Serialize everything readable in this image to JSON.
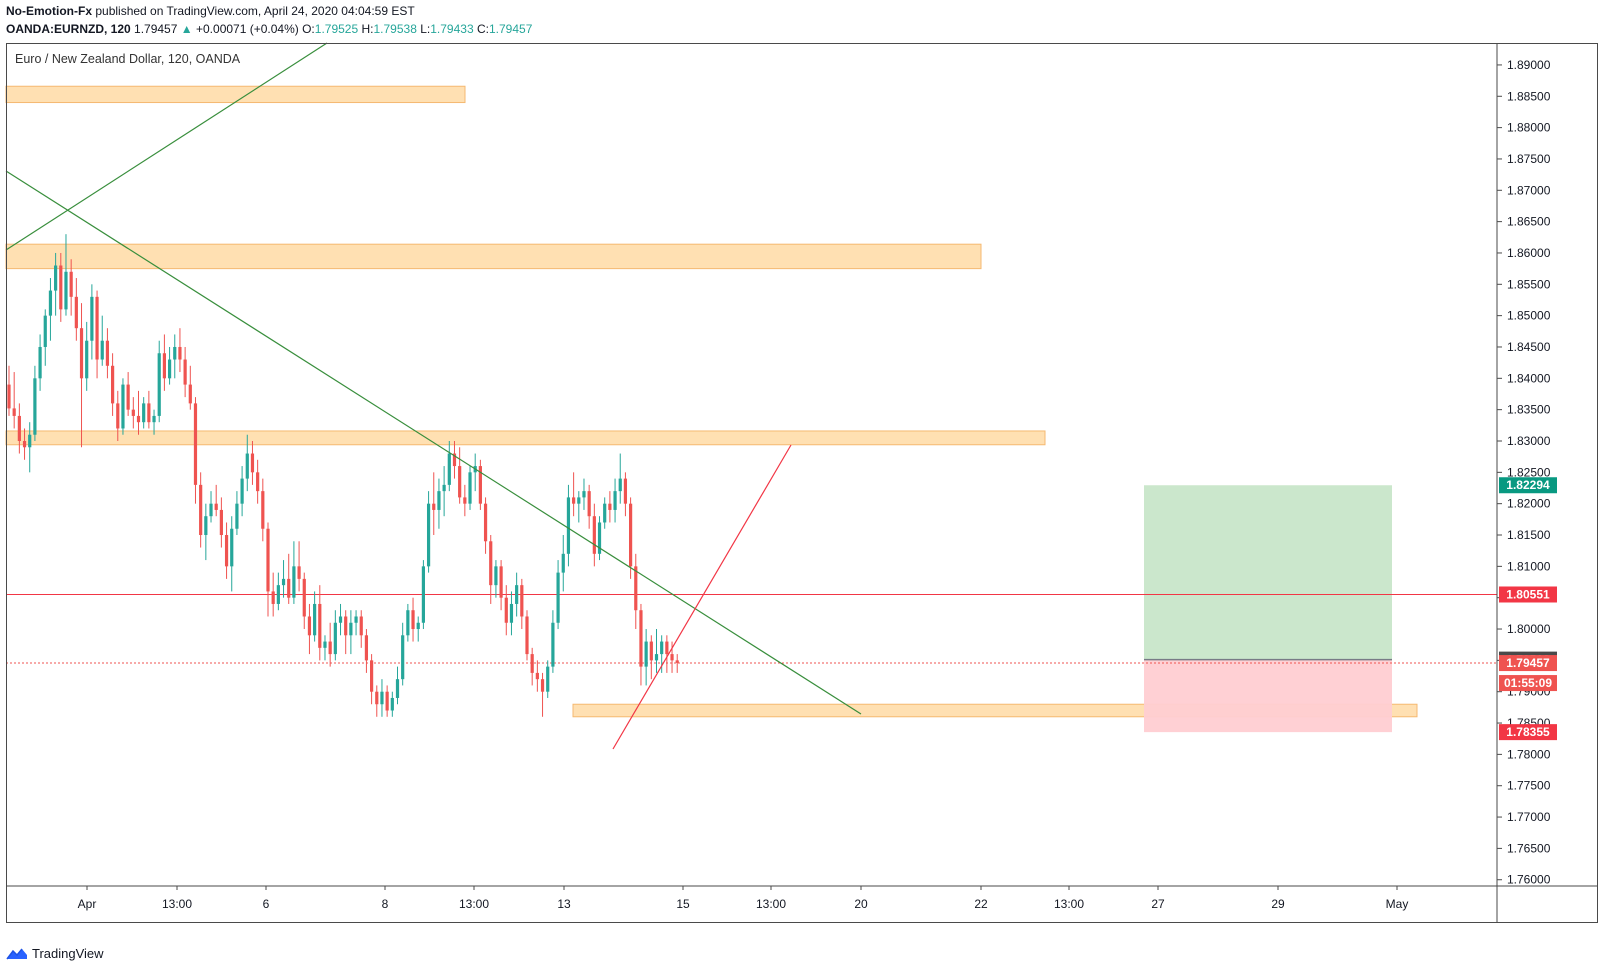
{
  "header": {
    "publisher": "No-Emotion-Fx",
    "published_text": "published on TradingView.com, April 24, 2020 04:04:59 EST",
    "symbol": "OANDA:EURNZD, 120",
    "last": "1.79457",
    "arrow": "▲",
    "change": "+0.00071 (+0.04%)",
    "open_label": "O:",
    "open": "1.79525",
    "high_label": "H:",
    "high": "1.79538",
    "low_label": "L:",
    "low": "1.79433",
    "close_label": "C:",
    "close": "1.79457"
  },
  "footer": {
    "brand": "TradingView",
    "icon": "tradingview-logo-icon"
  },
  "chart_data": {
    "type": "candlestick",
    "title": "Euro / New Zealand Dollar, 120, OANDA",
    "ylim": [
      1.759,
      1.8935
    ],
    "y_ticks": [
      "1.76000",
      "1.76500",
      "1.77000",
      "1.77500",
      "1.78000",
      "1.78500",
      "1.79000",
      "1.79500",
      "1.80000",
      "1.80500",
      "1.81000",
      "1.81500",
      "1.82000",
      "1.82500",
      "1.83000",
      "1.83500",
      "1.84000",
      "1.84500",
      "1.85000",
      "1.85500",
      "1.86000",
      "1.86500",
      "1.87000",
      "1.87500",
      "1.88000",
      "1.88500",
      "1.89000"
    ],
    "x_ticks": [
      "Apr",
      "13:00",
      "6",
      "8",
      "13:00",
      "13",
      "15",
      "13:00",
      "20",
      "22",
      "13:00",
      "27",
      "29",
      "May"
    ],
    "price_labels": [
      {
        "text": "1.82294",
        "price": 1.82294,
        "color": "#089981"
      },
      {
        "text": "1.80551",
        "price": 1.80551,
        "color": "#f23645"
      },
      {
        "text": "1.79512",
        "price": 1.79512,
        "color": "#4a4a4a"
      },
      {
        "text": "1.79457",
        "price": 1.79457,
        "color": "#ef5350"
      },
      {
        "text": "01:55:09",
        "price": 1.79457,
        "color": "#ef5350"
      },
      {
        "text": "1.78355",
        "price": 1.78355,
        "color": "#f23645"
      }
    ],
    "zones": [
      {
        "low": 1.884,
        "high": 1.8866
      },
      {
        "low": 1.8575,
        "high": 1.8614
      },
      {
        "low": 1.8294,
        "high": 1.8316
      },
      {
        "low": 1.786,
        "high": 1.788
      }
    ],
    "horizontal_line": 1.80551,
    "current_price_line": 1.79457,
    "position": {
      "entry": 1.79512,
      "target": 1.82294,
      "stop": 1.78355
    },
    "colors": {
      "up": "#26a69a",
      "down": "#ef5350",
      "zone_fill": "#ffe0b2",
      "zone_border": "#f5b971",
      "support_line": "#f23645",
      "trend_green": "#388e3c",
      "trend_red": "#f23645",
      "profit": "#c8e6c9",
      "loss": "#ffcdd2"
    },
    "candles": [
      [
        1.839,
        1.842,
        1.834,
        1.8352
      ],
      [
        1.8352,
        1.841,
        1.832,
        1.834
      ],
      [
        1.834,
        1.836,
        1.828,
        1.83
      ],
      [
        1.83,
        1.832,
        1.827,
        1.829
      ],
      [
        1.829,
        1.833,
        1.825,
        1.831
      ],
      [
        1.831,
        1.842,
        1.83,
        1.84
      ],
      [
        1.84,
        1.847,
        1.838,
        1.845
      ],
      [
        1.845,
        1.851,
        1.842,
        1.85
      ],
      [
        1.85,
        1.856,
        1.846,
        1.854
      ],
      [
        1.854,
        1.86,
        1.85,
        1.858
      ],
      [
        1.858,
        1.86,
        1.849,
        1.851
      ],
      [
        1.851,
        1.863,
        1.85,
        1.857
      ],
      [
        1.857,
        1.859,
        1.85,
        1.853
      ],
      [
        1.853,
        1.856,
        1.846,
        1.848
      ],
      [
        1.848,
        1.852,
        1.829,
        1.84
      ],
      [
        1.84,
        1.849,
        1.838,
        1.846
      ],
      [
        1.846,
        1.855,
        1.843,
        1.853
      ],
      [
        1.853,
        1.854,
        1.84,
        1.843
      ],
      [
        1.843,
        1.85,
        1.842,
        1.846
      ],
      [
        1.846,
        1.848,
        1.84,
        1.842
      ],
      [
        1.842,
        1.844,
        1.834,
        1.836
      ],
      [
        1.836,
        1.838,
        1.83,
        1.832
      ],
      [
        1.832,
        1.84,
        1.831,
        1.839
      ],
      [
        1.839,
        1.841,
        1.834,
        1.835
      ],
      [
        1.835,
        1.837,
        1.832,
        1.834
      ],
      [
        1.834,
        1.838,
        1.831,
        1.833
      ],
      [
        1.833,
        1.837,
        1.832,
        1.836
      ],
      [
        1.836,
        1.838,
        1.832,
        1.833
      ],
      [
        1.833,
        1.835,
        1.831,
        1.834
      ],
      [
        1.834,
        1.846,
        1.833,
        1.844
      ],
      [
        1.844,
        1.847,
        1.838,
        1.84
      ],
      [
        1.84,
        1.845,
        1.839,
        1.843
      ],
      [
        1.843,
        1.847,
        1.84,
        1.845
      ],
      [
        1.845,
        1.848,
        1.841,
        1.843
      ],
      [
        1.843,
        1.845,
        1.837,
        1.839
      ],
      [
        1.839,
        1.842,
        1.835,
        1.836
      ],
      [
        1.836,
        1.837,
        1.82,
        1.823
      ],
      [
        1.823,
        1.825,
        1.813,
        1.815
      ],
      [
        1.815,
        1.82,
        1.811,
        1.818
      ],
      [
        1.818,
        1.822,
        1.817,
        1.82
      ],
      [
        1.82,
        1.823,
        1.818,
        1.819
      ],
      [
        1.819,
        1.821,
        1.813,
        1.815
      ],
      [
        1.815,
        1.817,
        1.808,
        1.81
      ],
      [
        1.81,
        1.818,
        1.806,
        1.816
      ],
      [
        1.816,
        1.822,
        1.815,
        1.82
      ],
      [
        1.82,
        1.826,
        1.818,
        1.824
      ],
      [
        1.824,
        1.831,
        1.822,
        1.828
      ],
      [
        1.828,
        1.83,
        1.823,
        1.825
      ],
      [
        1.825,
        1.827,
        1.82,
        1.822
      ],
      [
        1.822,
        1.824,
        1.814,
        1.816
      ],
      [
        1.816,
        1.817,
        1.802,
        1.806
      ],
      [
        1.806,
        1.809,
        1.802,
        1.804
      ],
      [
        1.804,
        1.809,
        1.803,
        1.807
      ],
      [
        1.807,
        1.811,
        1.805,
        1.808
      ],
      [
        1.808,
        1.812,
        1.804,
        1.805
      ],
      [
        1.805,
        1.814,
        1.804,
        1.81
      ],
      [
        1.81,
        1.814,
        1.806,
        1.808
      ],
      [
        1.808,
        1.809,
        1.8,
        1.802
      ],
      [
        1.802,
        1.804,
        1.796,
        1.799
      ],
      [
        1.799,
        1.806,
        1.798,
        1.804
      ],
      [
        1.804,
        1.807,
        1.795,
        1.797
      ],
      [
        1.797,
        1.799,
        1.795,
        1.798
      ],
      [
        1.798,
        1.801,
        1.794,
        1.796
      ],
      [
        1.796,
        1.803,
        1.795,
        1.801
      ],
      [
        1.801,
        1.804,
        1.799,
        1.802
      ],
      [
        1.802,
        1.803,
        1.796,
        1.799
      ],
      [
        1.799,
        1.803,
        1.796,
        1.801
      ],
      [
        1.801,
        1.803,
        1.799,
        1.802
      ],
      [
        1.802,
        1.803,
        1.797,
        1.799
      ],
      [
        1.799,
        1.8,
        1.793,
        1.795
      ],
      [
        1.795,
        1.796,
        1.788,
        1.79
      ],
      [
        1.79,
        1.791,
        1.786,
        1.788
      ],
      [
        1.788,
        1.792,
        1.786,
        1.79
      ],
      [
        1.79,
        1.791,
        1.786,
        1.787
      ],
      [
        1.787,
        1.79,
        1.786,
        1.789
      ],
      [
        1.789,
        1.794,
        1.788,
        1.792
      ],
      [
        1.792,
        1.801,
        1.791,
        1.799
      ],
      [
        1.799,
        1.804,
        1.798,
        1.803
      ],
      [
        1.803,
        1.805,
        1.798,
        1.8
      ],
      [
        1.8,
        1.802,
        1.798,
        1.801
      ],
      [
        1.801,
        1.811,
        1.8,
        1.81
      ],
      [
        1.81,
        1.822,
        1.809,
        1.82
      ],
      [
        1.82,
        1.825,
        1.815,
        1.819
      ],
      [
        1.819,
        1.824,
        1.816,
        1.822
      ],
      [
        1.822,
        1.826,
        1.818,
        1.823
      ],
      [
        1.823,
        1.83,
        1.822,
        1.828
      ],
      [
        1.828,
        1.83,
        1.824,
        1.826
      ],
      [
        1.826,
        1.829,
        1.82,
        1.821
      ],
      [
        1.821,
        1.823,
        1.818,
        1.82
      ],
      [
        1.82,
        1.826,
        1.819,
        1.825
      ],
      [
        1.825,
        1.828,
        1.822,
        1.826
      ],
      [
        1.826,
        1.827,
        1.819,
        1.82
      ],
      [
        1.82,
        1.821,
        1.812,
        1.814
      ],
      [
        1.814,
        1.815,
        1.804,
        1.807
      ],
      [
        1.807,
        1.811,
        1.805,
        1.81
      ],
      [
        1.81,
        1.811,
        1.803,
        1.805
      ],
      [
        1.805,
        1.807,
        1.799,
        1.801
      ],
      [
        1.801,
        1.806,
        1.799,
        1.804
      ],
      [
        1.804,
        1.809,
        1.802,
        1.807
      ],
      [
        1.807,
        1.808,
        1.8,
        1.802
      ],
      [
        1.802,
        1.803,
        1.795,
        1.796
      ],
      [
        1.796,
        1.797,
        1.791,
        1.793
      ],
      [
        1.793,
        1.795,
        1.79,
        1.792
      ],
      [
        1.792,
        1.793,
        1.786,
        1.79
      ],
      [
        1.79,
        1.795,
        1.789,
        1.794
      ],
      [
        1.794,
        1.803,
        1.793,
        1.801
      ],
      [
        1.801,
        1.811,
        1.8,
        1.809
      ],
      [
        1.809,
        1.815,
        1.806,
        1.812
      ],
      [
        1.812,
        1.823,
        1.81,
        1.821
      ],
      [
        1.821,
        1.825,
        1.818,
        1.82
      ],
      [
        1.82,
        1.822,
        1.817,
        1.821
      ],
      [
        1.821,
        1.824,
        1.819,
        1.822
      ],
      [
        1.822,
        1.823,
        1.816,
        1.818
      ],
      [
        1.818,
        1.82,
        1.81,
        1.812
      ],
      [
        1.812,
        1.818,
        1.811,
        1.817
      ],
      [
        1.817,
        1.821,
        1.816,
        1.82
      ],
      [
        1.82,
        1.822,
        1.817,
        1.819
      ],
      [
        1.819,
        1.824,
        1.817,
        1.822
      ],
      [
        1.822,
        1.828,
        1.82,
        1.824
      ],
      [
        1.824,
        1.825,
        1.818,
        1.82
      ],
      [
        1.82,
        1.821,
        1.808,
        1.81
      ],
      [
        1.81,
        1.812,
        1.8,
        1.803
      ],
      [
        1.803,
        1.804,
        1.791,
        1.794
      ],
      [
        1.794,
        1.8,
        1.791,
        1.798
      ],
      [
        1.798,
        1.799,
        1.792,
        1.795
      ],
      [
        1.795,
        1.8,
        1.793,
        1.796
      ],
      [
        1.796,
        1.799,
        1.793,
        1.798
      ],
      [
        1.798,
        1.799,
        1.793,
        1.796
      ],
      [
        1.796,
        1.798,
        1.793,
        1.795
      ],
      [
        1.795,
        1.796,
        1.793,
        1.7946
      ]
    ]
  }
}
